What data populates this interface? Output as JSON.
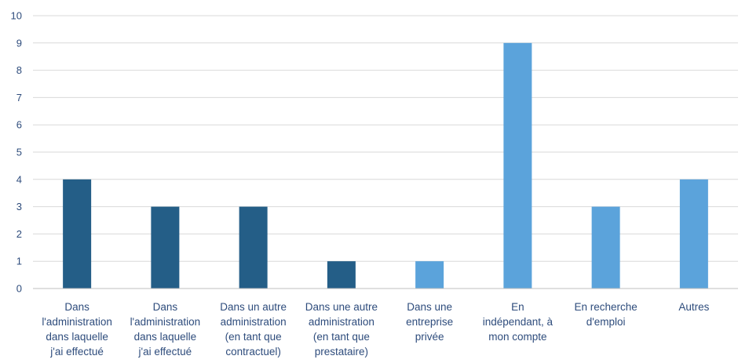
{
  "chart_data": {
    "type": "bar",
    "ylim": [
      0,
      10
    ],
    "yticks": [
      "0",
      "1",
      "2",
      "3",
      "4",
      "5",
      "6",
      "7",
      "8",
      "9",
      "10"
    ],
    "grid": true,
    "categories": [
      [
        "Dans",
        "l'administration",
        "dans laquelle",
        "j'ai effectué"
      ],
      [
        "Dans",
        "l'administration",
        "dans laquelle",
        "j'ai effectué"
      ],
      [
        "Dans un autre",
        "administration",
        "(en tant que",
        "contractuel)"
      ],
      [
        "Dans une autre",
        "administration",
        "(en tant que",
        "prestataire)"
      ],
      [
        "Dans une",
        "entreprise",
        "privée"
      ],
      [
        "En",
        "indépendant, à",
        "mon compte"
      ],
      [
        "En recherche",
        "d'emploi"
      ],
      [
        "Autres"
      ]
    ],
    "values": [
      4,
      3,
      3,
      1,
      1,
      9,
      3,
      4
    ],
    "bar_colors": [
      "#245E87",
      "#245E87",
      "#245E87",
      "#245E87",
      "#5BA3DB",
      "#5BA3DB",
      "#5BA3DB",
      "#5BA3DB"
    ]
  }
}
